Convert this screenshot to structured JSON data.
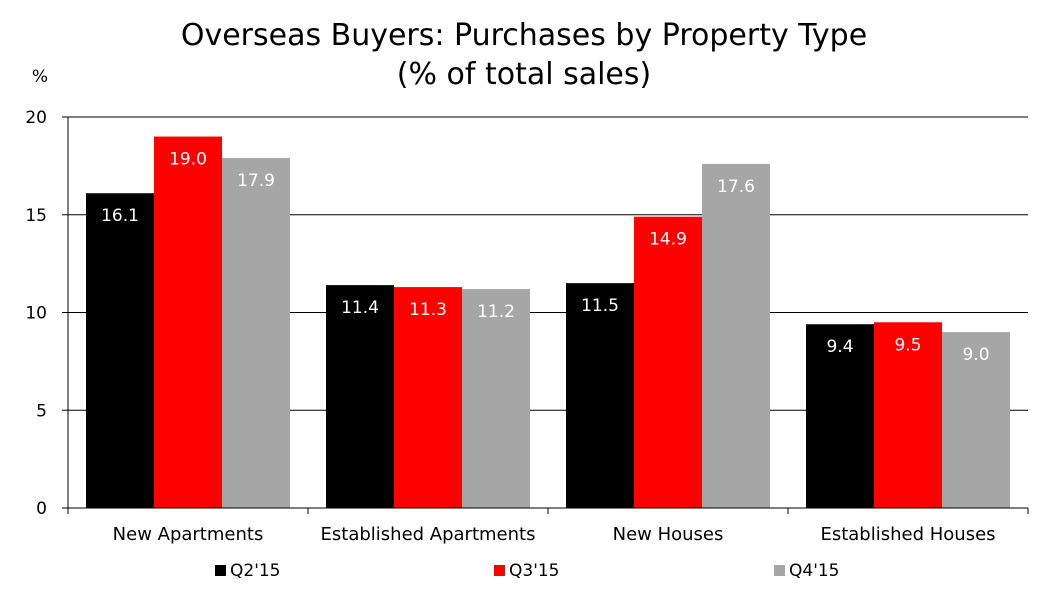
{
  "chart_data": {
    "type": "bar",
    "title": "Overseas Buyers: Purchases by Property Type",
    "subtitle": "(% of total sales)",
    "ylabel": "%",
    "xlabel": "",
    "ylim": [
      0,
      20
    ],
    "yticks": [
      0,
      5,
      10,
      15,
      20
    ],
    "grid": true,
    "legend_position": "bottom",
    "categories": [
      "New Apartments",
      "Established Apartments",
      "New Houses",
      "Established Houses"
    ],
    "series": [
      {
        "name": "Q2'15",
        "color": "#000000",
        "values": [
          16.1,
          11.4,
          11.5,
          9.4
        ]
      },
      {
        "name": "Q3'15",
        "color": "#ff0000",
        "values": [
          19.0,
          11.3,
          14.9,
          9.5
        ]
      },
      {
        "name": "Q4'15",
        "color": "#a6a6a6",
        "values": [
          17.9,
          11.2,
          17.6,
          9.0
        ]
      }
    ]
  }
}
